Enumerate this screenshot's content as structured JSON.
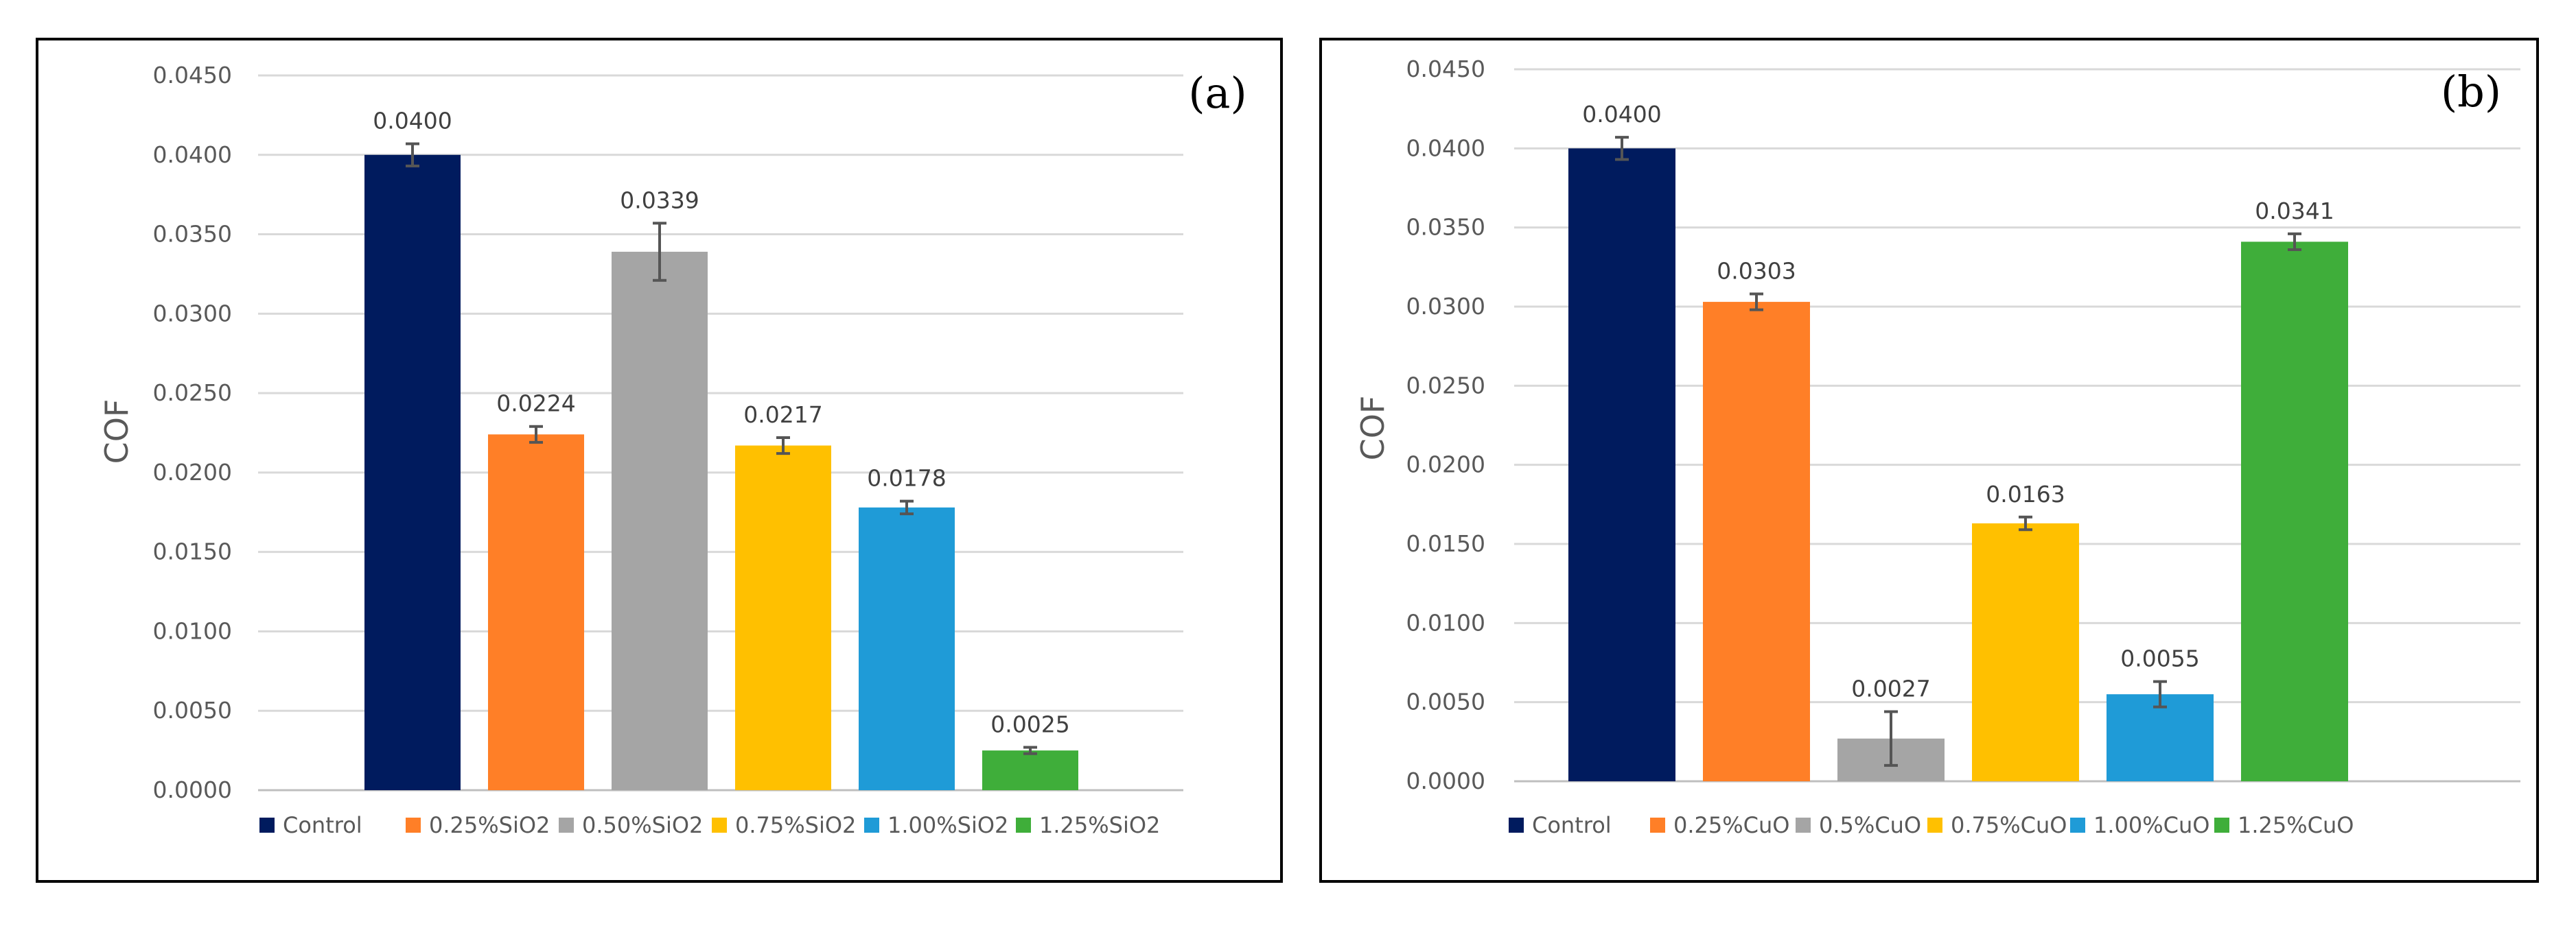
{
  "chart_data": [
    {
      "type": "bar",
      "panel_label": "(a)",
      "ylabel": "COF",
      "xlabel": "",
      "ylim": [
        0,
        0.045
      ],
      "y_ticks": [
        "0.0000",
        "0.0050",
        "0.0100",
        "0.0150",
        "0.0200",
        "0.0250",
        "0.0300",
        "0.0350",
        "0.0400",
        "0.0450"
      ],
      "grid": true,
      "legend_position": "bottom",
      "categories": [
        "Control",
        "0.25%SiO2",
        "0.50%SiO2",
        "0.75%SiO2",
        "1.00%SiO2",
        "1.25%SiO2"
      ],
      "values": [
        0.04,
        0.0224,
        0.0339,
        0.0217,
        0.0178,
        0.0025
      ],
      "value_labels": [
        "0.0400",
        "0.0224",
        "0.0339",
        "0.0217",
        "0.0178",
        "0.0025"
      ],
      "errors": [
        0.0007,
        0.0005,
        0.0018,
        0.0005,
        0.0004,
        0.0002
      ],
      "colors": [
        "#001b5e",
        "#ff7f27",
        "#a5a5a5",
        "#ffc000",
        "#1f9bd7",
        "#3fae3a"
      ]
    },
    {
      "type": "bar",
      "panel_label": "(b)",
      "ylabel": "COF",
      "xlabel": "",
      "ylim": [
        0,
        0.045
      ],
      "y_ticks": [
        "0.0000",
        "0.0050",
        "0.0100",
        "0.0150",
        "0.0200",
        "0.0250",
        "0.0300",
        "0.0350",
        "0.0400",
        "0.0450"
      ],
      "grid": true,
      "legend_position": "bottom",
      "categories": [
        "Control",
        "0.25%CuO",
        "0.5%CuO",
        "0.75%CuO",
        "1.00%CuO",
        "1.25%CuO"
      ],
      "values": [
        0.04,
        0.0303,
        0.0027,
        0.0163,
        0.0055,
        0.0341
      ],
      "value_labels": [
        "0.0400",
        "0.0303",
        "0.0027",
        "0.0163",
        "0.0055",
        "0.0341"
      ],
      "errors": [
        0.0007,
        0.0005,
        0.0017,
        0.0004,
        0.0008,
        0.0005
      ],
      "colors": [
        "#001b5e",
        "#ff7f27",
        "#a5a5a5",
        "#ffc000",
        "#1f9bd7",
        "#3fae3a"
      ]
    }
  ]
}
